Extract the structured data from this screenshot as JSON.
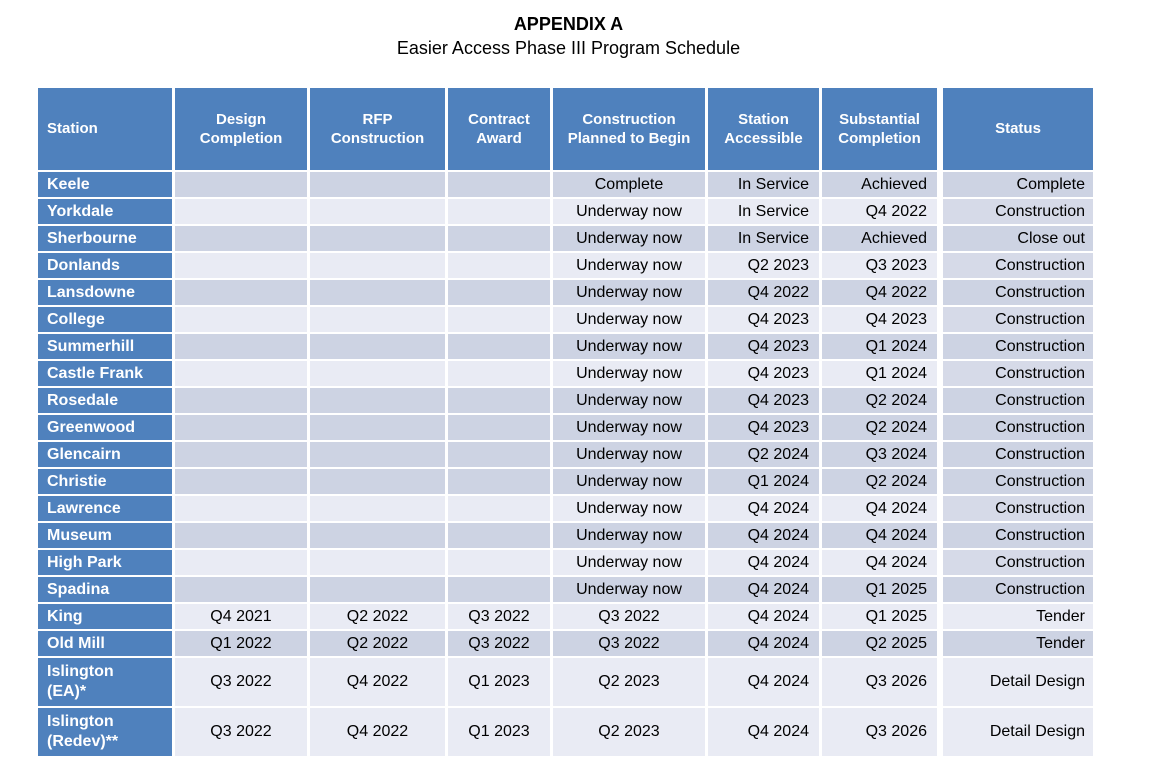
{
  "title": "APPENDIX A",
  "subtitle": "Easier Access Phase III Program Schedule",
  "colors": {
    "header_blue": "#4f81bd",
    "header_text": "#ffffff",
    "row_dark": "#cdd3e3",
    "row_light": "#e9ebf4",
    "status_medium": "#d6dae8",
    "border_white": "#ffffff",
    "text_dark": "#000000"
  },
  "table": {
    "columns": [
      {
        "key": "station",
        "label": "Station"
      },
      {
        "key": "design",
        "label": "Design Completion"
      },
      {
        "key": "rfp",
        "label": "RFP Construction"
      },
      {
        "key": "contract",
        "label": "Contract Award"
      },
      {
        "key": "begin",
        "label": "Construction Planned to Begin"
      },
      {
        "key": "accessible",
        "label": "Station Accessible"
      },
      {
        "key": "substantial",
        "label": "Substantial Completion"
      },
      {
        "key": "status",
        "label": "Status"
      }
    ],
    "rows": [
      {
        "station": "Keele",
        "design": "",
        "rfp": "",
        "contract": "",
        "begin": "Complete",
        "accessible": "In Service",
        "substantial": "Achieved",
        "status": "Complete",
        "shade": "dark",
        "status_shade": "dark"
      },
      {
        "station": "Yorkdale",
        "design": "",
        "rfp": "",
        "contract": "",
        "begin": "Underway now",
        "accessible": "In Service",
        "substantial": "Q4 2022",
        "status": "Construction",
        "shade": "light",
        "status_shade": "medium"
      },
      {
        "station": "Sherbourne",
        "design": "",
        "rfp": "",
        "contract": "",
        "begin": "Underway now",
        "accessible": "In Service",
        "substantial": "Achieved",
        "status": "Close out",
        "shade": "dark",
        "status_shade": "dark"
      },
      {
        "station": "Donlands",
        "design": "",
        "rfp": "",
        "contract": "",
        "begin": "Underway now",
        "accessible": "Q2 2023",
        "substantial": "Q3 2023",
        "status": "Construction",
        "shade": "light",
        "status_shade": "medium"
      },
      {
        "station": "Lansdowne",
        "design": "",
        "rfp": "",
        "contract": "",
        "begin": "Underway now",
        "accessible": "Q4 2022",
        "substantial": "Q4 2022",
        "status": "Construction",
        "shade": "dark",
        "status_shade": "dark"
      },
      {
        "station": "College",
        "design": "",
        "rfp": "",
        "contract": "",
        "begin": "Underway now",
        "accessible": "Q4 2023",
        "substantial": "Q4 2023",
        "status": "Construction",
        "shade": "light",
        "status_shade": "medium"
      },
      {
        "station": "Summerhill",
        "design": "",
        "rfp": "",
        "contract": "",
        "begin": "Underway now",
        "accessible": "Q4 2023",
        "substantial": "Q1 2024",
        "status": "Construction",
        "shade": "dark",
        "status_shade": "dark"
      },
      {
        "station": "Castle Frank",
        "design": "",
        "rfp": "",
        "contract": "",
        "begin": "Underway now",
        "accessible": "Q4 2023",
        "substantial": "Q1 2024",
        "status": "Construction",
        "shade": "light",
        "status_shade": "medium"
      },
      {
        "station": "Rosedale",
        "design": "",
        "rfp": "",
        "contract": "",
        "begin": "Underway now",
        "accessible": "Q4 2023",
        "substantial": "Q2 2024",
        "status": "Construction",
        "shade": "dark",
        "status_shade": "dark"
      },
      {
        "station": "Greenwood",
        "design": "",
        "rfp": "",
        "contract": "",
        "begin": "Underway now",
        "accessible": "Q4 2023",
        "substantial": "Q2 2024",
        "status": "Construction",
        "shade": "dark",
        "status_shade": "dark"
      },
      {
        "station": "Glencairn",
        "design": "",
        "rfp": "",
        "contract": "",
        "begin": "Underway now",
        "accessible": "Q2 2024",
        "substantial": "Q3 2024",
        "status": "Construction",
        "shade": "dark",
        "status_shade": "dark"
      },
      {
        "station": "Christie",
        "design": "",
        "rfp": "",
        "contract": "",
        "begin": "Underway now",
        "accessible": "Q1 2024",
        "substantial": "Q2 2024",
        "status": "Construction",
        "shade": "dark",
        "status_shade": "dark"
      },
      {
        "station": "Lawrence",
        "design": "",
        "rfp": "",
        "contract": "",
        "begin": "Underway now",
        "accessible": "Q4 2024",
        "substantial": "Q4 2024",
        "status": "Construction",
        "shade": "light",
        "status_shade": "medium"
      },
      {
        "station": "Museum",
        "design": "",
        "rfp": "",
        "contract": "",
        "begin": "Underway now",
        "accessible": "Q4 2024",
        "substantial": "Q4 2024",
        "status": "Construction",
        "shade": "dark",
        "status_shade": "dark"
      },
      {
        "station": "High Park",
        "design": "",
        "rfp": "",
        "contract": "",
        "begin": "Underway now",
        "accessible": "Q4 2024",
        "substantial": "Q4 2024",
        "status": "Construction",
        "shade": "light",
        "status_shade": "medium"
      },
      {
        "station": "Spadina",
        "design": "",
        "rfp": "",
        "contract": "",
        "begin": "Underway now",
        "accessible": "Q4 2024",
        "substantial": "Q1 2025",
        "status": "Construction",
        "shade": "dark",
        "status_shade": "dark"
      },
      {
        "station": "King",
        "design": "Q4 2021",
        "rfp": "Q2 2022",
        "contract": "Q3 2022",
        "begin": "Q3 2022",
        "accessible": "Q4 2024",
        "substantial": "Q1 2025",
        "status": "Tender",
        "shade": "light",
        "status_shade": "light"
      },
      {
        "station": "Old Mill",
        "design": "Q1 2022",
        "rfp": "Q2 2022",
        "contract": "Q3 2022",
        "begin": "Q3 2022",
        "accessible": "Q4 2024",
        "substantial": "Q2 2025",
        "status": "Tender",
        "shade": "dark",
        "status_shade": "dark"
      },
      {
        "station": "Islington\n(EA)*",
        "design": "Q3 2022",
        "rfp": "Q4 2022",
        "contract": "Q1 2023",
        "begin": "Q2 2023",
        "accessible": "Q4 2024",
        "substantial": "Q3 2026",
        "status": "Detail Design",
        "shade": "light",
        "status_shade": "light",
        "tall": true
      },
      {
        "station": "Islington\n(Redev)**",
        "design": "Q3 2022",
        "rfp": "Q4 2022",
        "contract": "Q1 2023",
        "begin": "Q2 2023",
        "accessible": "Q4 2024",
        "substantial": "Q3 2026",
        "status": "Detail Design",
        "shade": "light",
        "status_shade": "light",
        "tall": true
      }
    ]
  }
}
